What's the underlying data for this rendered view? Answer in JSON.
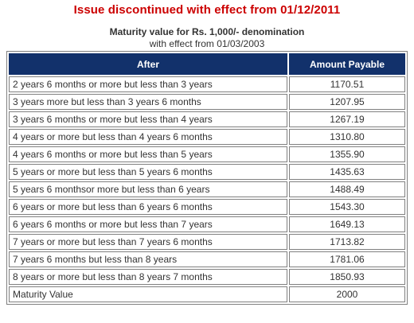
{
  "notice": "Issue discontinued with effect from 01/12/2011",
  "heading": "Maturity value for Rs. 1,000/- denomination",
  "subheading": "with effect from 01/03/2003",
  "table": {
    "headers": [
      "After",
      "Amount Payable"
    ],
    "rows": [
      [
        "2 years 6 months or more but less than 3 years",
        "1170.51"
      ],
      [
        "3 years more but less than 3 years 6 months",
        "1207.95"
      ],
      [
        "3 years 6 months or more but less than 4 years",
        "1267.19"
      ],
      [
        "4 years or more but less than 4 years 6 months",
        "1310.80"
      ],
      [
        "4 years 6 months or more but less than 5 years",
        "1355.90"
      ],
      [
        "5 years or more but less than 5 years 6 months",
        "1435.63"
      ],
      [
        "5 years 6 monthsor more but less than 6 years",
        "1488.49"
      ],
      [
        "6 years or more but less than 6 years 6 months",
        "1543.30"
      ],
      [
        "6 years 6 months or more but less than 7 years",
        "1649.13"
      ],
      [
        "7 years or more but less than 7 years 6 months",
        "1713.82"
      ],
      [
        "7 years 6 months but less than 8 years",
        "1781.06"
      ],
      [
        "8 years or more but less than 8 years 7 months",
        "1850.93"
      ],
      [
        "Maturity Value",
        "2000"
      ]
    ]
  },
  "colors": {
    "notice": "#cc0000",
    "header_bg": "#12316b",
    "header_text": "#ffffff",
    "cell_border": "#808080",
    "body_text": "#333333"
  }
}
